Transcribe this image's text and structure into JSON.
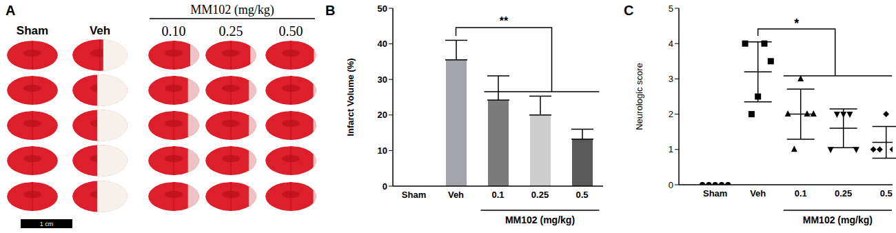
{
  "panel_a": {
    "panel_label": "A",
    "columns": [
      "Sham",
      "Veh",
      "0.10",
      "0.25",
      "0.50"
    ],
    "group": {
      "label": "MM102 (mg/kg)",
      "columns": [
        "0.10",
        "0.25",
        "0.50"
      ]
    },
    "scale_bar": "1 cm"
  },
  "chart_data": [
    {
      "type": "bar",
      "panel_label": "B",
      "ylabel": "Infarct Volume (%)",
      "categories": [
        "Sham",
        "Veh",
        "0.1",
        "0.25",
        "0.5"
      ],
      "values": [
        0,
        35.5,
        24.2,
        20,
        13.2
      ],
      "errors": [
        0,
        5.5,
        6.8,
        5.3,
        2.8
      ],
      "colors": [
        "#a3a3ab",
        "#a3a3ab",
        "#7b7b7b",
        "#cdcdcd",
        "#5a5a5a"
      ],
      "ylim": [
        0,
        50
      ],
      "yticks": [
        0,
        10,
        20,
        30,
        40,
        50
      ],
      "grid": false,
      "group": {
        "label": "MM102 (mg/kg)",
        "categories": [
          "0.1",
          "0.25",
          "0.5"
        ]
      },
      "annotation": "**"
    },
    {
      "type": "scatter",
      "panel_label": "C",
      "ylabel": "Neurologic score",
      "categories": [
        "Sham",
        "Veh",
        "0.1",
        "0.25",
        "0.5"
      ],
      "series": [
        {
          "marker": "circle",
          "color": "#000000",
          "values": [
            0,
            0,
            0,
            0,
            0
          ],
          "mean": 0,
          "sd": 0
        },
        {
          "marker": "square",
          "color": "#000000",
          "values": [
            4,
            2,
            2.5,
            4,
            3.5
          ],
          "mean": 3.2,
          "sd": 0.85
        },
        {
          "marker": "triangle",
          "color": "#000000",
          "values": [
            2,
            1,
            3,
            2,
            2
          ],
          "mean": 2,
          "sd": 0.71
        },
        {
          "marker": "triangle-down",
          "color": "#000000",
          "values": [
            1,
            2,
            2,
            2,
            1
          ],
          "mean": 1.6,
          "sd": 0.55
        },
        {
          "marker": "diamond",
          "color": "#000000",
          "values": [
            1,
            1,
            2,
            1,
            1
          ],
          "mean": 1.2,
          "sd": 0.45
        }
      ],
      "ylim": [
        0,
        5
      ],
      "yticks": [
        0,
        1,
        2,
        3,
        4,
        5
      ],
      "grid": false,
      "group": {
        "label": "MM102 (mg/kg)",
        "categories": [
          "0.1",
          "0.25",
          "0.5"
        ]
      },
      "annotation": "*"
    }
  ]
}
